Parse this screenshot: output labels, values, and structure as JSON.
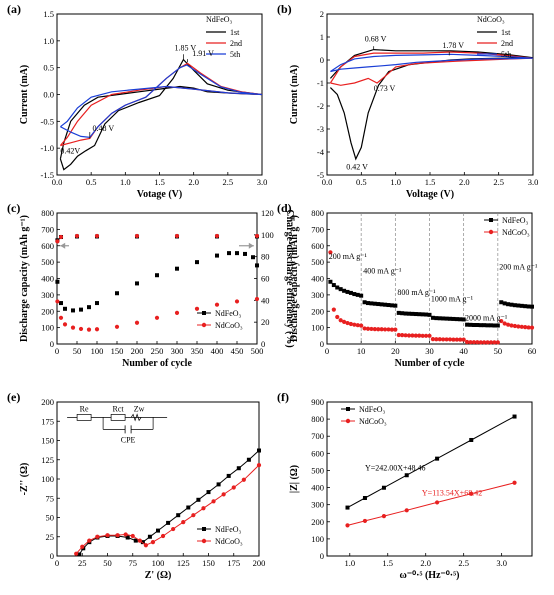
{
  "chart_data": [
    {
      "panel_label": "(a)",
      "type": "line",
      "xlabel": "Votage (V)",
      "ylabel": "Current (mA)",
      "xlim": [
        0,
        3
      ],
      "ylim": [
        -1.5,
        1.5
      ],
      "xticks": [
        "0.0",
        "0.5",
        "1.0",
        "1.5",
        "2.0",
        "2.5",
        "3.0"
      ],
      "yticks": [
        "-1.5",
        "-1.0",
        "-0.5",
        "0.0",
        "0.5",
        "1.0",
        "1.5"
      ],
      "legend": {
        "title": "NdFeO₃",
        "position": "top-right"
      },
      "series": [
        {
          "name": "1st",
          "color": "#000000",
          "x": [
            0.05,
            0.1,
            0.2,
            0.3,
            0.42,
            0.55,
            0.7,
            0.9,
            1.2,
            1.5,
            1.7,
            1.85,
            2.0,
            2.2,
            2.5,
            2.8,
            3.0,
            2.6,
            2.2,
            2.0,
            1.8,
            1.5,
            1.2,
            0.9,
            0.6,
            0.4,
            0.2,
            0.1,
            0.05
          ],
          "y": [
            -1.2,
            -1.4,
            -1.3,
            -1.15,
            -1.05,
            -0.95,
            -0.55,
            -0.3,
            -0.15,
            -0.02,
            0.3,
            0.65,
            0.45,
            0.2,
            0.08,
            0.03,
            0.0,
            0.02,
            0.05,
            0.12,
            0.15,
            0.1,
            0.05,
            0.0,
            -0.05,
            -0.2,
            -0.5,
            -0.9,
            -1.2
          ]
        },
        {
          "name": "2nd",
          "color": "#e82020",
          "x": [
            0.05,
            0.2,
            0.35,
            0.48,
            0.6,
            0.8,
            1.0,
            1.3,
            1.6,
            1.8,
            1.91,
            2.1,
            2.4,
            2.7,
            3.0,
            2.5,
            2.0,
            1.6,
            1.2,
            0.8,
            0.5,
            0.3,
            0.15,
            0.05
          ],
          "y": [
            -0.95,
            -0.9,
            -0.85,
            -0.82,
            -0.6,
            -0.35,
            -0.2,
            -0.05,
            0.3,
            0.5,
            0.58,
            0.4,
            0.15,
            0.05,
            0.0,
            0.03,
            0.1,
            0.15,
            0.08,
            0.0,
            -0.2,
            -0.5,
            -0.8,
            -0.95
          ]
        },
        {
          "name": "5th",
          "color": "#1a3ed6",
          "x": [
            0.05,
            0.2,
            0.35,
            0.48,
            0.6,
            0.8,
            1.0,
            1.3,
            1.6,
            1.8,
            1.9,
            2.1,
            2.4,
            2.7,
            3.0,
            2.5,
            2.0,
            1.6,
            1.2,
            0.8,
            0.5,
            0.3,
            0.15,
            0.05
          ],
          "y": [
            -0.6,
            -0.7,
            -0.78,
            -0.8,
            -0.6,
            -0.35,
            -0.2,
            -0.05,
            0.3,
            0.5,
            0.55,
            0.38,
            0.14,
            0.04,
            0.0,
            0.03,
            0.1,
            0.15,
            0.1,
            0.05,
            -0.05,
            -0.25,
            -0.5,
            -0.6
          ]
        }
      ],
      "annotations": [
        "1.85 V",
        "1.91 V",
        "0.48 V",
        "0.42V"
      ]
    },
    {
      "panel_label": "(b)",
      "type": "line",
      "xlabel": "Voltage (V)",
      "ylabel": "Current (mA)",
      "xlim": [
        0,
        3
      ],
      "ylim": [
        -5,
        2
      ],
      "xticks": [
        "0.0",
        "0.5",
        "1.0",
        "1.5",
        "2.0",
        "2.5",
        "3.0"
      ],
      "yticks": [
        "-5",
        "-4",
        "-3",
        "-2",
        "-1",
        "0",
        "1",
        "2"
      ],
      "legend": {
        "title": "NdCoO₃",
        "position": "top-right"
      },
      "series": [
        {
          "name": "1st",
          "color": "#000000",
          "x": [
            0.05,
            0.15,
            0.25,
            0.35,
            0.42,
            0.5,
            0.6,
            0.75,
            0.9,
            1.2,
            1.5,
            1.8,
            2.1,
            2.5,
            3.0,
            2.6,
            2.2,
            1.8,
            1.4,
            1.0,
            0.68,
            0.4,
            0.2,
            0.05
          ],
          "y": [
            -1.2,
            -1.5,
            -2.3,
            -3.6,
            -4.3,
            -3.8,
            -2.3,
            -1.1,
            -0.5,
            -0.2,
            -0.1,
            0.0,
            0.05,
            0.08,
            0.1,
            0.25,
            0.35,
            0.4,
            0.4,
            0.4,
            0.45,
            0.2,
            -0.3,
            -0.8
          ]
        },
        {
          "name": "2nd",
          "color": "#e82020",
          "x": [
            0.05,
            0.2,
            0.4,
            0.6,
            0.73,
            0.85,
            1.0,
            1.3,
            1.6,
            1.9,
            2.3,
            2.7,
            3.0,
            2.6,
            2.2,
            1.8,
            1.4,
            1.0,
            0.68,
            0.4,
            0.2,
            0.05
          ],
          "y": [
            -1.0,
            -1.1,
            -1.0,
            -0.8,
            -1.0,
            -0.7,
            -0.3,
            -0.15,
            -0.1,
            -0.05,
            0.0,
            0.05,
            0.08,
            0.2,
            0.3,
            0.35,
            0.3,
            0.3,
            0.3,
            0.15,
            -0.3,
            -1.0
          ]
        },
        {
          "name": "5th",
          "color": "#1a3ed6",
          "x": [
            0.05,
            0.2,
            0.4,
            0.6,
            0.8,
            1.0,
            1.3,
            1.6,
            1.9,
            2.3,
            2.7,
            3.0,
            2.6,
            2.2,
            1.8,
            1.4,
            1.0,
            0.68,
            0.4,
            0.2,
            0.05
          ],
          "y": [
            -0.5,
            -0.4,
            -0.35,
            -0.3,
            -0.25,
            -0.2,
            -0.1,
            -0.05,
            0.0,
            0.05,
            0.06,
            0.08,
            0.15,
            0.2,
            0.25,
            0.22,
            0.2,
            0.15,
            0.05,
            -0.2,
            -0.5
          ]
        }
      ],
      "annotations": [
        "0.68 V",
        "1.78 V",
        "0.73 V",
        "0.42 V"
      ]
    },
    {
      "panel_label": "(c)",
      "type": "scatter",
      "xlabel": "Number of cycle",
      "ylabel": "Discharge capacity (mAh g⁻¹)",
      "y2label": "Charge-discharge efficiency (%)",
      "xlim": [
        0,
        500
      ],
      "ylim": [
        0,
        800
      ],
      "y2lim": [
        0,
        120
      ],
      "xticks": [
        "0",
        "50",
        "100",
        "150",
        "200",
        "250",
        "300",
        "350",
        "400",
        "450",
        "500"
      ],
      "yticks": [
        "0",
        "100",
        "200",
        "300",
        "400",
        "500",
        "600",
        "700",
        "800"
      ],
      "y2ticks": [
        "0",
        "20",
        "40",
        "60",
        "80",
        "100",
        "120"
      ],
      "legend": {
        "position": "bottom-right"
      },
      "series": [
        {
          "name": "NdFeO₃",
          "color": "#000000",
          "marker": "square",
          "axis": "left",
          "x": [
            1,
            10,
            20,
            40,
            60,
            80,
            100,
            150,
            200,
            250,
            300,
            350,
            400,
            430,
            450,
            470,
            490,
            500
          ],
          "y": [
            380,
            250,
            215,
            205,
            210,
            225,
            250,
            310,
            370,
            420,
            460,
            500,
            540,
            555,
            555,
            550,
            530,
            480
          ]
        },
        {
          "name": "NdCoO₃",
          "color": "#e82020",
          "marker": "circle",
          "axis": "left",
          "x": [
            1,
            10,
            20,
            40,
            60,
            80,
            100,
            150,
            200,
            250,
            300,
            350,
            400,
            450,
            500
          ],
          "y": [
            260,
            160,
            120,
            100,
            92,
            88,
            90,
            105,
            130,
            160,
            190,
            215,
            240,
            260,
            275
          ]
        },
        {
          "name": "NdFeO₃ efficiency",
          "color": "#000000",
          "marker": "square",
          "axis": "right",
          "x": [
            1,
            10,
            50,
            100,
            200,
            300,
            400,
            500
          ],
          "y": [
            95,
            98,
            98.5,
            98.5,
            98.5,
            98.5,
            98.5,
            98.5
          ]
        },
        {
          "name": "NdCoO₃ efficiency",
          "color": "#e82020",
          "marker": "circle",
          "axis": "right",
          "x": [
            1,
            10,
            50,
            100,
            200,
            300,
            400,
            500
          ],
          "y": [
            94,
            98,
            99,
            99,
            99,
            99,
            99,
            99
          ]
        }
      ]
    },
    {
      "panel_label": "(d)",
      "type": "scatter",
      "xlabel": "Number of cycle",
      "ylabel": "Discharge capacity (mAh g⁻¹)",
      "xlim": [
        0,
        60
      ],
      "ylim": [
        0,
        800
      ],
      "xticks": [
        "0",
        "10",
        "20",
        "30",
        "40",
        "50",
        "60"
      ],
      "yticks": [
        "0",
        "100",
        "200",
        "300",
        "400",
        "500",
        "600",
        "700",
        "800"
      ],
      "legend": {
        "position": "top-right"
      },
      "series": [
        {
          "name": "NdFeO₃",
          "color": "#000000",
          "marker": "square",
          "x": [
            1,
            2,
            3,
            4,
            5,
            6,
            7,
            8,
            9,
            10,
            11,
            12,
            13,
            14,
            15,
            16,
            17,
            18,
            19,
            20,
            21,
            22,
            23,
            24,
            25,
            26,
            27,
            28,
            29,
            30,
            31,
            32,
            33,
            34,
            35,
            36,
            37,
            38,
            39,
            40,
            41,
            42,
            43,
            44,
            45,
            46,
            47,
            48,
            49,
            50,
            51,
            52,
            53,
            54,
            55,
            56,
            57,
            58,
            59,
            60
          ],
          "y": [
            380,
            360,
            345,
            335,
            325,
            318,
            312,
            305,
            300,
            295,
            255,
            250,
            248,
            246,
            244,
            242,
            240,
            238,
            236,
            234,
            190,
            188,
            186,
            185,
            184,
            183,
            182,
            181,
            180,
            178,
            160,
            158,
            157,
            156,
            155,
            154,
            153,
            152,
            151,
            150,
            118,
            117,
            116,
            116,
            115,
            115,
            114,
            114,
            113,
            113,
            255,
            248,
            243,
            240,
            237,
            235,
            233,
            231,
            229,
            228
          ]
        },
        {
          "name": "NdCoO₃",
          "color": "#e82020",
          "marker": "circle",
          "x": [
            1,
            2,
            3,
            4,
            5,
            6,
            7,
            8,
            9,
            10,
            11,
            12,
            13,
            14,
            15,
            16,
            17,
            18,
            19,
            20,
            21,
            22,
            23,
            24,
            25,
            26,
            27,
            28,
            29,
            30,
            31,
            32,
            33,
            34,
            35,
            36,
            37,
            38,
            39,
            40,
            41,
            42,
            43,
            44,
            45,
            46,
            47,
            48,
            49,
            50,
            51,
            52,
            53,
            54,
            55,
            56,
            57,
            58,
            59,
            60
          ],
          "y": [
            560,
            210,
            165,
            145,
            135,
            128,
            122,
            118,
            115,
            112,
            95,
            93,
            92,
            91,
            90,
            90,
            89,
            89,
            88,
            88,
            55,
            54,
            53,
            52,
            52,
            51,
            51,
            50,
            50,
            50,
            30,
            29,
            29,
            28,
            28,
            28,
            27,
            27,
            27,
            27,
            12,
            11,
            11,
            11,
            10,
            10,
            10,
            10,
            10,
            10,
            140,
            125,
            118,
            113,
            110,
            107,
            105,
            103,
            101,
            100
          ]
        }
      ],
      "annotations": [
        "200 mA g⁻¹",
        "400 mA g⁻¹",
        "800 mA g⁻¹",
        "1000 mA g⁻¹",
        "2000 mA g⁻¹",
        "200 mA g⁻¹"
      ]
    },
    {
      "panel_label": "(e)",
      "type": "scatter",
      "xlabel": "Z' (Ω)",
      "ylabel": "-Z'' (Ω)",
      "xlim": [
        0,
        200
      ],
      "ylim": [
        0,
        200
      ],
      "xticks": [
        "0",
        "25",
        "50",
        "75",
        "100",
        "125",
        "150",
        "175",
        "200"
      ],
      "yticks": [
        "0",
        "25",
        "50",
        "75",
        "100",
        "125",
        "150",
        "175",
        "200"
      ],
      "legend": {
        "position": "bottom-right"
      },
      "series": [
        {
          "name": "NdFeO₃",
          "color": "#000000",
          "marker": "square",
          "x": [
            22,
            26,
            32,
            40,
            50,
            60,
            70,
            78,
            85,
            92,
            100,
            110,
            120,
            130,
            140,
            150,
            160,
            170,
            180,
            190,
            200
          ],
          "y": [
            2,
            10,
            18,
            24,
            26,
            26,
            24,
            20,
            18,
            25,
            33,
            43,
            53,
            63,
            73,
            83,
            93,
            104,
            114,
            125,
            137
          ]
        },
        {
          "name": "NdCoO₃",
          "color": "#e82020",
          "marker": "circle",
          "x": [
            19,
            25,
            32,
            40,
            50,
            60,
            68,
            75,
            82,
            88,
            95,
            105,
            115,
            125,
            135,
            145,
            155,
            165,
            175,
            185,
            200
          ],
          "y": [
            3,
            12,
            20,
            25,
            27,
            27,
            28,
            26,
            20,
            14,
            18,
            26,
            35,
            44,
            53,
            62,
            71,
            80,
            89,
            99,
            118
          ]
        }
      ],
      "circuit_labels": [
        "Re",
        "Rct",
        "Zw",
        "CPE"
      ]
    },
    {
      "panel_label": "(f)",
      "type": "line",
      "xlabel": "ω⁻⁰·⁵ (Hz⁻⁰·⁵)",
      "ylabel": "|Z| (Ω)",
      "xlim": [
        0.7,
        3.4
      ],
      "ylim": [
        0,
        900
      ],
      "xticks": [
        "1.0",
        "1.5",
        "2.0",
        "2.5",
        "3.0"
      ],
      "yticks": [
        "0",
        "100",
        "200",
        "300",
        "400",
        "500",
        "600",
        "700",
        "800",
        "900"
      ],
      "legend": {
        "position": "top-left"
      },
      "series": [
        {
          "name": "NdFeO₃",
          "color": "#000000",
          "marker": "square",
          "x": [
            0.97,
            1.2,
            1.45,
            1.75,
            2.15,
            2.6,
            3.17
          ],
          "y": [
            283,
            339,
            399,
            472,
            569,
            678,
            815
          ]
        },
        {
          "name": "NdCoO₃",
          "color": "#e82020",
          "marker": "circle",
          "x": [
            0.97,
            1.2,
            1.45,
            1.75,
            2.15,
            2.6,
            3.17
          ],
          "y": [
            179,
            205,
            233,
            267,
            313,
            364,
            428
          ]
        }
      ],
      "annotations": [
        "Y=242.00X+48.46",
        "Y=113.54X+68.42"
      ]
    }
  ]
}
